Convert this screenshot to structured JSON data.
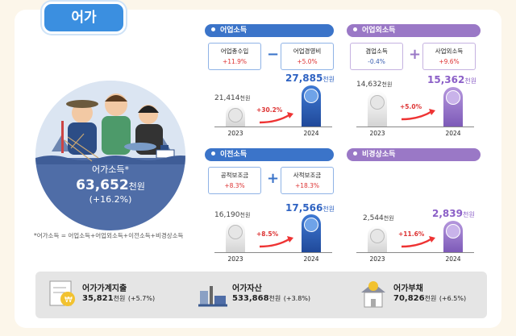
{
  "title": "어가",
  "center": {
    "label": "어가소득*",
    "value": "63,652",
    "unit": "천원",
    "change": "(+16.2%)"
  },
  "formula": "*어가소득 = 어업소득+어업외소득+이전소득+비경상소득",
  "sections": [
    {
      "id": "fishery",
      "header": "어업소득",
      "color": "#3b74c9",
      "op": "−",
      "sub": [
        {
          "label": "어업총수입",
          "change": "+11.9%"
        },
        {
          "label": "어업경영비",
          "change": "+5.0%"
        }
      ],
      "v2023": "21,414",
      "v2024": "27,885",
      "unit": "천원",
      "rate": "+30.2%",
      "y2023": "2023",
      "y2024": "2024"
    },
    {
      "id": "nonfishery",
      "header": "어업외소득",
      "color": "#9a78c6",
      "op": "+",
      "sub": [
        {
          "label": "겸업소득",
          "change": "-0.4%"
        },
        {
          "label": "사업외소득",
          "change": "+9.6%"
        }
      ],
      "v2023": "14,632",
      "v2024": "15,362",
      "unit": "천원",
      "rate": "+5.0%",
      "y2023": "2023",
      "y2024": "2024"
    },
    {
      "id": "transfer",
      "header": "이전소득",
      "color": "#3b74c9",
      "op": "+",
      "sub": [
        {
          "label": "공적보조금",
          "change": "+8.3%"
        },
        {
          "label": "사적보조금",
          "change": "+18.3%"
        }
      ],
      "v2023": "16,190",
      "v2024": "17,566",
      "unit": "천원",
      "rate": "+8.5%",
      "y2023": "2023",
      "y2024": "2024"
    },
    {
      "id": "irregular",
      "header": "비경상소득",
      "color": "#9a78c6",
      "v2023": "2,544",
      "v2024": "2,839",
      "unit": "천원",
      "rate": "+11.6%",
      "y2023": "2023",
      "y2024": "2024"
    }
  ],
  "bottom": [
    {
      "title": "어가가계지출",
      "value": "35,821",
      "unit": "천원",
      "change": "(+5.7%)",
      "icon": "receipt-icon"
    },
    {
      "title": "어가자산",
      "value": "533,868",
      "unit": "천원",
      "change": "(+3.8%)",
      "icon": "harbor-icon"
    },
    {
      "title": "어가부채",
      "value": "70,826",
      "unit": "천원",
      "change": "(+6.5%)",
      "icon": "house-icon"
    }
  ]
}
